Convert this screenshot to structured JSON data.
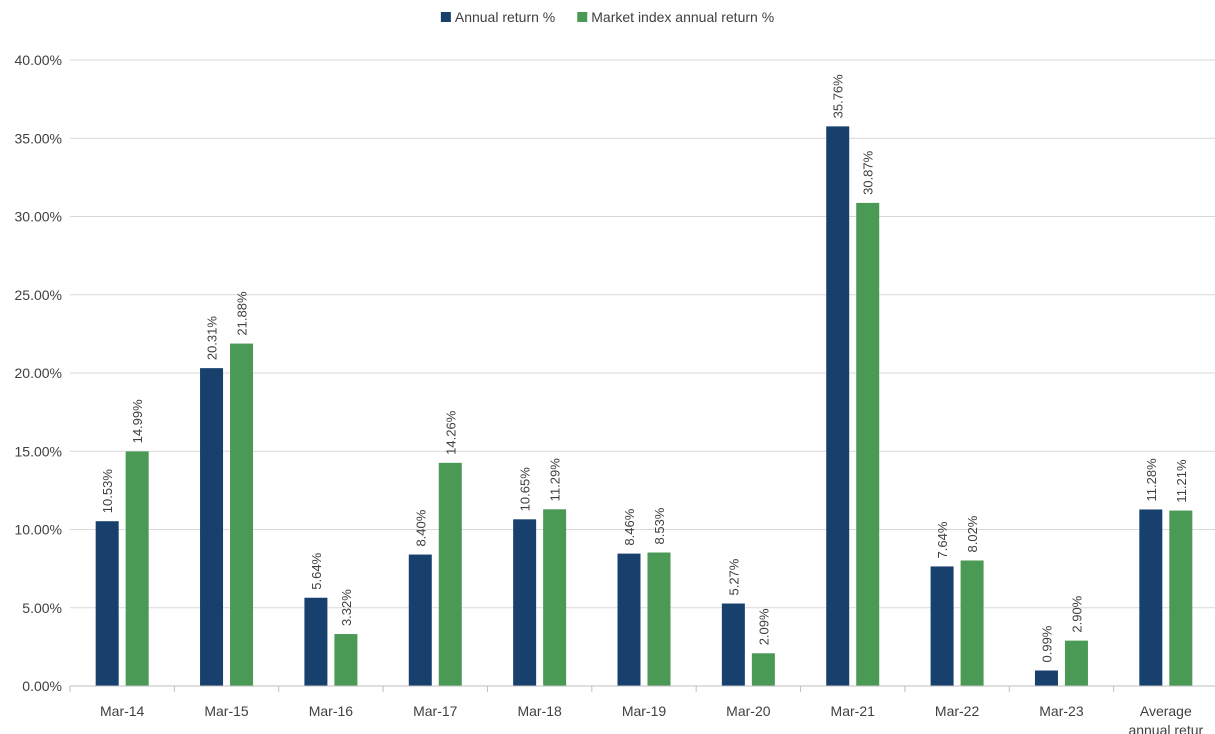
{
  "chart_data": {
    "type": "bar",
    "title": "",
    "xlabel": "",
    "ylabel": "",
    "categories": [
      "Mar-14",
      "Mar-15",
      "Mar-16",
      "Mar-17",
      "Mar-18",
      "Mar-19",
      "Mar-20",
      "Mar-21",
      "Mar-22",
      "Mar-23",
      "Average annual retur"
    ],
    "category_lines": [
      [
        "Mar-14"
      ],
      [
        "Mar-15"
      ],
      [
        "Mar-16"
      ],
      [
        "Mar-17"
      ],
      [
        "Mar-18"
      ],
      [
        "Mar-19"
      ],
      [
        "Mar-20"
      ],
      [
        "Mar-21"
      ],
      [
        "Mar-22"
      ],
      [
        "Mar-23"
      ],
      [
        "Average",
        "annual retur"
      ]
    ],
    "series": [
      {
        "name": "Annual return %",
        "color": "#17406d",
        "values": [
          10.53,
          20.31,
          5.64,
          8.4,
          10.65,
          8.46,
          5.27,
          35.76,
          7.64,
          0.99,
          11.28
        ],
        "labels": [
          "10.53%",
          "20.31%",
          "5.64%",
          "8.40%",
          "10.65%",
          "8.46%",
          "5.27%",
          "35.76%",
          "7.64%",
          "0.99%",
          "11.28%"
        ]
      },
      {
        "name": "Market index annual return %",
        "color": "#4a9a55",
        "values": [
          14.99,
          21.88,
          3.32,
          14.26,
          11.29,
          8.53,
          2.09,
          30.87,
          8.02,
          2.9,
          11.21
        ],
        "labels": [
          "14.99%",
          "21.88%",
          "3.32%",
          "14.26%",
          "11.29%",
          "8.53%",
          "2.09%",
          "30.87%",
          "8.02%",
          "2.90%",
          "11.21%"
        ]
      }
    ],
    "ylim": [
      0,
      40
    ],
    "yticks": [
      0,
      5,
      10,
      15,
      20,
      25,
      30,
      35,
      40
    ],
    "ytick_labels": [
      "0.00%",
      "5.00%",
      "10.00%",
      "15.00%",
      "20.00%",
      "25.00%",
      "30.00%",
      "35.00%",
      "40.00%"
    ],
    "grid": true,
    "legend_position": "top-center",
    "data_labels_rotated": true
  }
}
